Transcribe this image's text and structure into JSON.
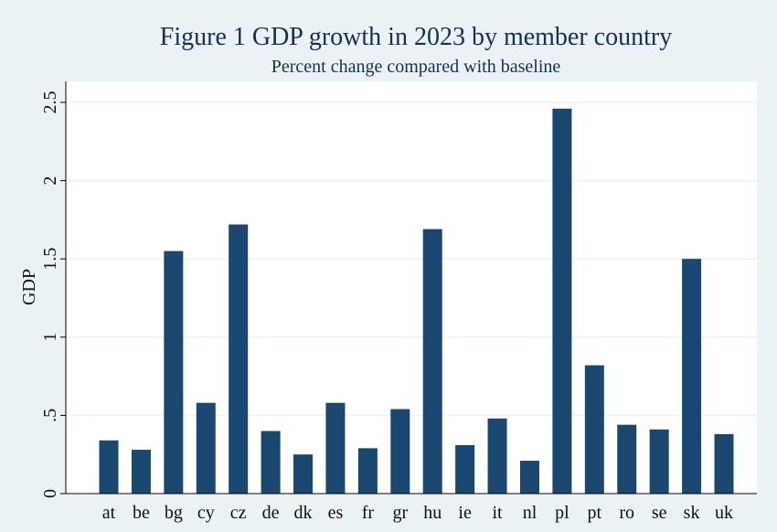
{
  "chart_data": {
    "type": "bar",
    "title": "Figure 1 GDP growth in 2023 by member country",
    "subtitle": "Percent change compared with baseline",
    "xlabel": "",
    "ylabel": "GDP",
    "categories": [
      "at",
      "be",
      "bg",
      "cy",
      "cz",
      "de",
      "dk",
      "es",
      "fr",
      "gr",
      "hu",
      "ie",
      "it",
      "nl",
      "pl",
      "pt",
      "ro",
      "se",
      "sk",
      "uk"
    ],
    "values": [
      0.34,
      0.28,
      1.55,
      0.58,
      1.72,
      0.4,
      0.25,
      0.58,
      0.29,
      0.54,
      1.69,
      0.31,
      0.48,
      0.21,
      2.46,
      0.82,
      0.44,
      0.41,
      1.5,
      0.38
    ],
    "ylim": [
      0,
      2.5
    ],
    "yticks": [
      0,
      0.5,
      1,
      1.5,
      2,
      2.5
    ],
    "ytick_labels": [
      "0",
      ".5",
      "1",
      "1.5",
      "2",
      "2.5"
    ],
    "grid": true,
    "legend": "none",
    "colors": {
      "bar": "#1a476f",
      "background": "#eaf2f3",
      "plot_area": "#ffffff",
      "grid": "#eaf2f3",
      "title": "#1a2e50"
    }
  }
}
